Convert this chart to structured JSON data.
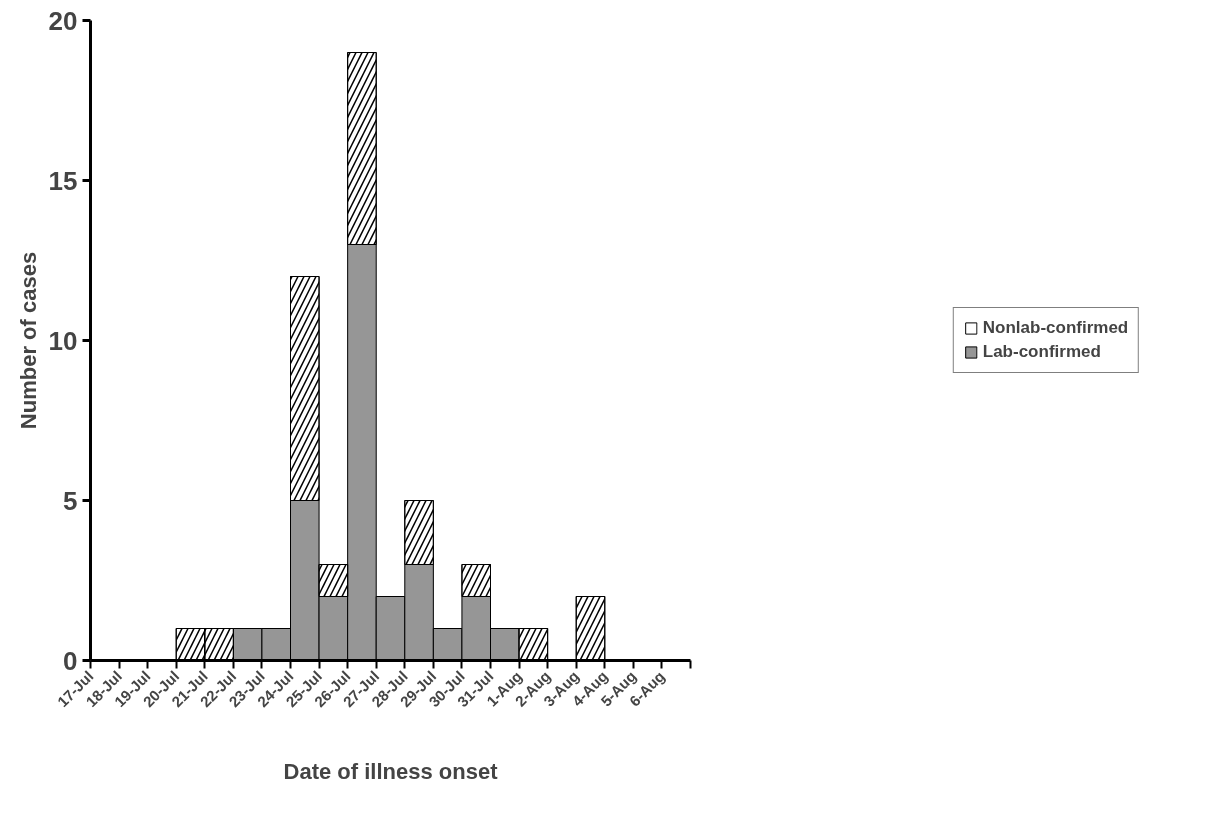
{
  "chart_data": {
    "type": "bar",
    "stacked": true,
    "xlabel": "Date of illness onset",
    "ylabel": "Number of cases",
    "categories": [
      "17-Jul",
      "18-Jul",
      "19-Jul",
      "20-Jul",
      "21-Jul",
      "22-Jul",
      "23-Jul",
      "24-Jul",
      "25-Jul",
      "26-Jul",
      "27-Jul",
      "28-Jul",
      "29-Jul",
      "30-Jul",
      "31-Jul",
      "1-Aug",
      "2-Aug",
      "3-Aug",
      "4-Aug",
      "5-Aug",
      "6-Aug"
    ],
    "series": [
      {
        "name": "Lab-confirmed",
        "color": "#969696",
        "values": [
          0,
          0,
          0,
          0,
          0,
          1,
          1,
          5,
          2,
          13,
          2,
          3,
          1,
          2,
          1,
          0,
          0,
          0,
          0,
          0,
          0
        ]
      },
      {
        "name": "Nonlab-confirmed",
        "color": "#ffffff",
        "values": [
          0,
          0,
          0,
          1,
          1,
          0,
          0,
          7,
          1,
          6,
          0,
          2,
          0,
          1,
          0,
          1,
          0,
          2,
          0,
          0,
          0
        ]
      }
    ],
    "ylim": [
      0,
      20
    ],
    "yticks": [
      0,
      5,
      10,
      15,
      20
    ],
    "grid": false,
    "legend": "right"
  }
}
